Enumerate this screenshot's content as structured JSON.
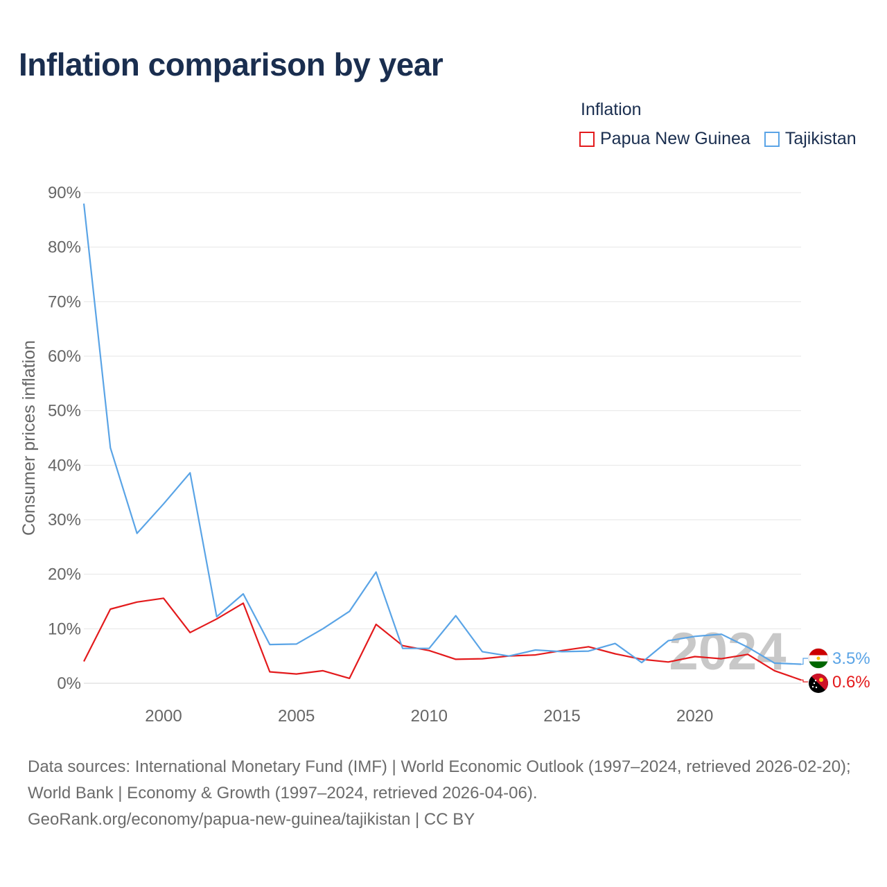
{
  "title": "Inflation comparison by year",
  "legend": {
    "title": "Inflation",
    "items": [
      {
        "label": "Papua New Guinea",
        "color": "#e31a1c"
      },
      {
        "label": "Tajikistan",
        "color": "#5aa4e6"
      }
    ]
  },
  "chart_data": {
    "type": "line",
    "title": "Inflation comparison by year",
    "xlabel": "",
    "ylabel": "Consumer prices inflation",
    "xlim": [
      1997,
      2024
    ],
    "ylim": [
      0,
      90
    ],
    "x_ticks": [
      2000,
      2005,
      2010,
      2015,
      2020
    ],
    "y_ticks": [
      0,
      10,
      20,
      30,
      40,
      50,
      60,
      70,
      80,
      90
    ],
    "y_tick_labels": [
      "0%",
      "10%",
      "20%",
      "30%",
      "40%",
      "50%",
      "60%",
      "70%",
      "80%",
      "90%"
    ],
    "grid": true,
    "year_watermark": "2024",
    "x": [
      1997,
      1998,
      1999,
      2000,
      2001,
      2002,
      2003,
      2004,
      2005,
      2006,
      2007,
      2008,
      2009,
      2010,
      2011,
      2012,
      2013,
      2014,
      2015,
      2016,
      2017,
      2018,
      2019,
      2020,
      2021,
      2022,
      2023,
      2024
    ],
    "series": [
      {
        "name": "Papua New Guinea",
        "color": "#e31a1c",
        "end_label": "0.6%",
        "values": [
          4.0,
          13.6,
          14.9,
          15.6,
          9.3,
          11.8,
          14.7,
          2.1,
          1.7,
          2.3,
          0.9,
          10.8,
          6.9,
          6.0,
          4.4,
          4.5,
          5.0,
          5.2,
          6.0,
          6.7,
          5.4,
          4.4,
          3.9,
          4.9,
          4.5,
          5.3,
          2.3,
          0.6
        ]
      },
      {
        "name": "Tajikistan",
        "color": "#5aa4e6",
        "end_label": "3.5%",
        "values": [
          88.0,
          43.2,
          27.5,
          32.9,
          38.6,
          12.2,
          16.4,
          7.1,
          7.2,
          10.0,
          13.2,
          20.4,
          6.4,
          6.4,
          12.4,
          5.8,
          5.0,
          6.1,
          5.8,
          5.9,
          7.3,
          3.8,
          7.8,
          8.6,
          9.0,
          6.6,
          3.7,
          3.5
        ]
      }
    ]
  },
  "source": {
    "line1": "Data sources: International Monetary Fund (IMF) | World Economic Outlook (1997–2024, retrieved 2026-02-20); World Bank | Economy & Growth (1997–2024, retrieved 2026-04-06).",
    "line2": "GeoRank.org/economy/papua-new-guinea/tajikistan | CC BY"
  }
}
